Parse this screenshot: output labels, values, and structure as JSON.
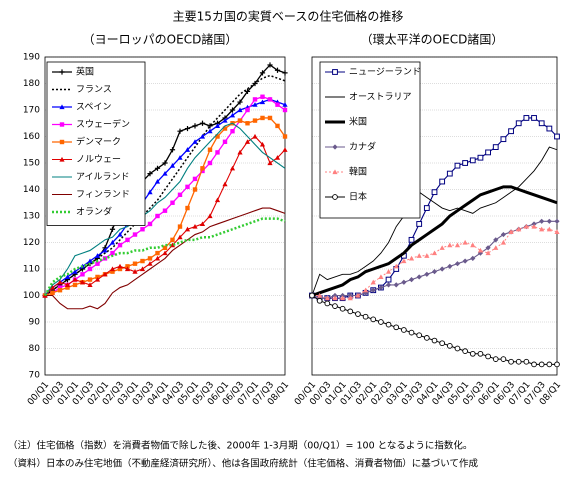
{
  "title": "主要15カ国の実質ベースの住宅価格の推移",
  "notes": [
    "（注）住宅価格（指数）を消費者物価で除した後、2000年 1-3月期（00/Q1）= 100 となるように指数化。",
    "（資料）日本のみ住宅地価（不動産経済研究所）、他は各国政府統計（住宅価格、消費者物価）に基づいて作成"
  ],
  "chart_data": [
    {
      "type": "line",
      "title": "（ヨーロッパのOECD諸国）",
      "categories": [
        "00/Q1",
        null,
        "00/Q3",
        null,
        "01/Q1",
        null,
        "01/Q3",
        null,
        "02/Q1",
        null,
        "02/Q3",
        null,
        "03/Q1",
        null,
        "03/Q3",
        null,
        "04/Q1",
        null,
        "04/Q3",
        null,
        "05/Q1",
        null,
        "05/Q3",
        null,
        "06/Q1",
        null,
        "06/Q3",
        null,
        "07/Q1",
        null,
        "07/Q3",
        null,
        "08/Q1"
      ],
      "ylim": [
        70,
        190
      ],
      "yticks": [
        70,
        80,
        90,
        100,
        110,
        120,
        130,
        140,
        150,
        160,
        170,
        180,
        190
      ],
      "show_tick_labels": true,
      "grid": true,
      "series": [
        {
          "name": "英国",
          "color": "#000000",
          "marker": "plus",
          "dash": "solid",
          "width": 1.3,
          "values": [
            100,
            102,
            104,
            106,
            108,
            110,
            112,
            114,
            118,
            125,
            132,
            138,
            140,
            143,
            146,
            148,
            150,
            155,
            162,
            163,
            164,
            165,
            164,
            165,
            167,
            170,
            173,
            177,
            180,
            184,
            187,
            185,
            184
          ]
        },
        {
          "name": "フランス",
          "color": "#000000",
          "marker": "none",
          "dash": "dotted",
          "width": 1.5,
          "values": [
            100,
            102,
            104,
            106,
            108,
            110,
            112,
            114,
            116,
            118,
            121,
            124,
            127,
            130,
            133,
            136,
            140,
            144,
            148,
            152,
            156,
            160,
            164,
            167,
            170,
            173,
            176,
            178,
            180,
            182,
            183,
            182,
            181
          ]
        },
        {
          "name": "スペイン",
          "color": "#0000ff",
          "marker": "triangle",
          "dash": "solid",
          "width": 1.3,
          "values": [
            100,
            103,
            105,
            107,
            109,
            111,
            113,
            115,
            117,
            120,
            123,
            127,
            131,
            135,
            139,
            143,
            146,
            149,
            152,
            155,
            158,
            160,
            162,
            164,
            166,
            168,
            170,
            171,
            172,
            173,
            174,
            173,
            172
          ]
        },
        {
          "name": "スウェーデン",
          "color": "#ff00ff",
          "marker": "square",
          "dash": "solid",
          "width": 1.3,
          "values": [
            100,
            101,
            103,
            104,
            106,
            108,
            110,
            112,
            114,
            116,
            119,
            121,
            123,
            125,
            127,
            130,
            132,
            135,
            138,
            141,
            144,
            147,
            150,
            154,
            158,
            162,
            166,
            170,
            174,
            175,
            174,
            172,
            170
          ]
        },
        {
          "name": "デンマーク",
          "color": "#ff6600",
          "marker": "square",
          "dash": "solid",
          "width": 1.3,
          "values": [
            100,
            101,
            102,
            103,
            104,
            105,
            106,
            107,
            108,
            109,
            110,
            111,
            112,
            113,
            114,
            116,
            118,
            121,
            126,
            133,
            140,
            148,
            155,
            160,
            163,
            165,
            166,
            165,
            166,
            167,
            167,
            164,
            160
          ]
        },
        {
          "name": "ノルウェー",
          "color": "#e00000",
          "marker": "triangle",
          "dash": "solid",
          "width": 1.1,
          "values": [
            100,
            103,
            105,
            104,
            106,
            105,
            104,
            106,
            108,
            110,
            111,
            110,
            109,
            110,
            112,
            114,
            116,
            119,
            122,
            125,
            126,
            127,
            130,
            136,
            142,
            148,
            154,
            158,
            160,
            157,
            150,
            152,
            155
          ]
        },
        {
          "name": "アイルランド",
          "color": "#008080",
          "marker": "none",
          "dash": "solid",
          "width": 1.1,
          "values": [
            100,
            104,
            106,
            110,
            115,
            116,
            117,
            119,
            121,
            122,
            125,
            126,
            128,
            130,
            132,
            135,
            137,
            140,
            143,
            148,
            152,
            155,
            158,
            161,
            164,
            165,
            163,
            160,
            157,
            154,
            152,
            150,
            148
          ]
        },
        {
          "name": "フィンランド",
          "color": "#800000",
          "marker": "none",
          "dash": "solid",
          "width": 1.1,
          "values": [
            100,
            100,
            97,
            95,
            95,
            95,
            96,
            95,
            97,
            101,
            103,
            104,
            106,
            108,
            110,
            112,
            114,
            117,
            119,
            121,
            123,
            124,
            126,
            127,
            128,
            129,
            130,
            131,
            132,
            133,
            133,
            132,
            131
          ]
        },
        {
          "name": "オランダ",
          "color": "#33cc33",
          "marker": "none",
          "dash": "dotted",
          "width": 2.5,
          "values": [
            100,
            105,
            107,
            108,
            110,
            111,
            112,
            113,
            114,
            115,
            116,
            116,
            117,
            117,
            118,
            118,
            119,
            119,
            120,
            121,
            121,
            122,
            122,
            123,
            124,
            125,
            126,
            127,
            128,
            129,
            129,
            129,
            128
          ]
        }
      ]
    },
    {
      "type": "line",
      "title": "（環太平洋のOECD諸国）",
      "categories": [
        "00/Q1",
        null,
        "00/Q3",
        null,
        "01/Q1",
        null,
        "01/Q3",
        null,
        "02/Q1",
        null,
        "02/Q3",
        null,
        "03/Q1",
        null,
        "03/Q3",
        null,
        "04/Q1",
        null,
        "04/Q3",
        null,
        "05/Q1",
        null,
        "05/Q3",
        null,
        "06/Q1",
        null,
        "06/Q3",
        null,
        "07/Q1",
        null,
        "07/Q3",
        null,
        "08/Q1"
      ],
      "ylim": [
        70,
        190
      ],
      "yticks": [
        70,
        80,
        90,
        100,
        110,
        120,
        130,
        140,
        150,
        160,
        170,
        180,
        190
      ],
      "show_tick_labels": false,
      "grid": true,
      "series": [
        {
          "name": "ニュージーランド",
          "color": "#000080",
          "marker": "opensquare",
          "dash": "solid",
          "width": 1.1,
          "values": [
            100,
            99,
            99,
            99,
            99,
            100,
            100,
            101,
            102,
            103,
            106,
            110,
            115,
            121,
            127,
            133,
            139,
            143,
            146,
            149,
            150,
            151,
            152,
            154,
            156,
            159,
            162,
            165,
            167,
            167,
            165,
            163,
            160
          ]
        },
        {
          "name": "オーストラリア",
          "color": "#000000",
          "marker": "none",
          "dash": "solid",
          "width": 0.9,
          "values": [
            100,
            108,
            106,
            107,
            108,
            108,
            109,
            111,
            113,
            116,
            120,
            126,
            130,
            136,
            139,
            137,
            135,
            133,
            132,
            133,
            132,
            131,
            133,
            134,
            135,
            137,
            139,
            141,
            144,
            147,
            151,
            156,
            155
          ]
        },
        {
          "name": "米国",
          "color": "#000000",
          "marker": "none",
          "dash": "solid",
          "width": 3,
          "values": [
            100,
            101,
            102,
            103,
            104,
            106,
            107,
            109,
            110,
            111,
            112,
            114,
            116,
            119,
            121,
            123,
            125,
            127,
            130,
            132,
            134,
            136,
            138,
            139,
            140,
            141,
            141,
            140,
            139,
            138,
            137,
            136,
            135
          ]
        },
        {
          "name": "カナダ",
          "color": "#6a5a8c",
          "marker": "diamond",
          "dash": "solid",
          "width": 1.1,
          "values": [
            100,
            99,
            99,
            100,
            100,
            100,
            100,
            101,
            102,
            103,
            104,
            104,
            105,
            106,
            107,
            108,
            109,
            110,
            111,
            112,
            113,
            114,
            116,
            118,
            121,
            123,
            124,
            125,
            126,
            127,
            128,
            128,
            128
          ]
        },
        {
          "name": "韓国",
          "color": "#ff8080",
          "marker": "triangle",
          "dash": "dotted",
          "width": 1,
          "values": [
            100,
            100,
            99,
            99,
            99,
            99,
            100,
            102,
            105,
            107,
            109,
            111,
            113,
            114,
            115,
            115,
            116,
            118,
            119,
            119,
            120,
            119,
            117,
            116,
            118,
            120,
            124,
            125,
            126,
            126,
            125,
            125,
            124
          ]
        },
        {
          "name": "日本",
          "color": "#000000",
          "marker": "circle",
          "dash": "solid",
          "width": 1,
          "values": [
            100,
            98,
            97,
            96,
            95,
            94,
            93,
            92,
            91,
            90,
            89,
            88,
            87,
            86,
            85,
            84,
            83,
            82,
            81,
            80,
            79,
            78,
            78,
            77,
            76,
            76,
            75,
            75,
            75,
            74,
            74,
            74,
            74
          ]
        }
      ]
    }
  ]
}
